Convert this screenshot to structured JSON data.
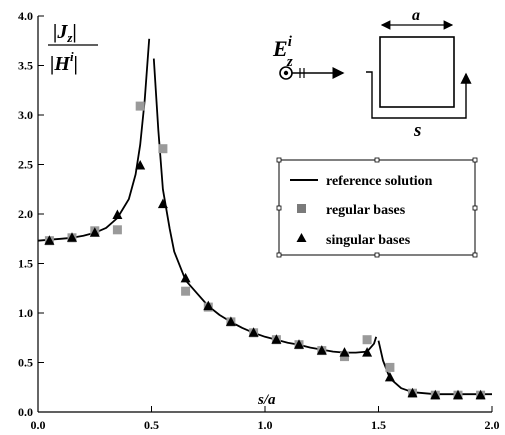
{
  "chart_data": {
    "type": "line",
    "xlabel": "s/a",
    "ylabel": {
      "num_prefix": "|J",
      "num_sub": "z",
      "num_suffix": "|",
      "den_prefix": "|H",
      "den_sup": "i",
      "den_suffix": "|"
    },
    "xlim": [
      0,
      2.0
    ],
    "ylim": [
      0,
      4.0
    ],
    "xticks": [
      "0.0",
      "0.5",
      "1.0",
      "1.5",
      "2.0"
    ],
    "yticks": [
      "0.0",
      "0.5",
      "1.0",
      "1.5",
      "2.0",
      "2.5",
      "3.0",
      "3.5",
      "4.0"
    ],
    "grid": false,
    "legend_position": "right",
    "series": [
      {
        "name": "reference solution",
        "kind": "line",
        "color": "#000000",
        "segments": [
          [
            [
              0.0,
              1.73
            ],
            [
              0.05,
              1.74
            ],
            [
              0.1,
              1.75
            ],
            [
              0.15,
              1.76
            ],
            [
              0.2,
              1.78
            ],
            [
              0.25,
              1.81
            ],
            [
              0.3,
              1.86
            ],
            [
              0.35,
              1.96
            ],
            [
              0.4,
              2.15
            ],
            [
              0.43,
              2.4
            ],
            [
              0.45,
              2.7
            ],
            [
              0.47,
              3.15
            ],
            [
              0.49,
              3.77
            ]
          ],
          [
            [
              0.51,
              3.57
            ],
            [
              0.53,
              2.85
            ],
            [
              0.55,
              2.25
            ],
            [
              0.58,
              1.85
            ],
            [
              0.6,
              1.62
            ],
            [
              0.65,
              1.33
            ],
            [
              0.7,
              1.2
            ],
            [
              0.75,
              1.07
            ],
            [
              0.8,
              0.98
            ],
            [
              0.85,
              0.91
            ],
            [
              0.9,
              0.85
            ],
            [
              0.95,
              0.8
            ],
            [
              1.0,
              0.76
            ],
            [
              1.05,
              0.73
            ],
            [
              1.1,
              0.7
            ],
            [
              1.15,
              0.68
            ],
            [
              1.2,
              0.65
            ],
            [
              1.25,
              0.63
            ],
            [
              1.3,
              0.61
            ],
            [
              1.35,
              0.6
            ],
            [
              1.4,
              0.6
            ],
            [
              1.45,
              0.61
            ],
            [
              1.48,
              0.69
            ],
            [
              1.49,
              0.76
            ]
          ],
          [
            [
              1.5,
              0.72
            ],
            [
              1.52,
              0.52
            ],
            [
              1.55,
              0.34
            ],
            [
              1.6,
              0.24
            ],
            [
              1.65,
              0.2
            ],
            [
              1.7,
              0.19
            ],
            [
              1.75,
              0.18
            ],
            [
              1.8,
              0.18
            ],
            [
              1.9,
              0.18
            ],
            [
              2.0,
              0.18
            ]
          ]
        ]
      },
      {
        "name": "regular bases",
        "kind": "square",
        "color": "#9a9a9a",
        "points": [
          [
            0.05,
            1.73
          ],
          [
            0.15,
            1.76
          ],
          [
            0.25,
            1.83
          ],
          [
            0.35,
            1.84
          ],
          [
            0.45,
            3.09
          ],
          [
            0.55,
            2.66
          ],
          [
            0.65,
            1.22
          ],
          [
            0.75,
            1.06
          ],
          [
            0.85,
            0.91
          ],
          [
            0.95,
            0.8
          ],
          [
            1.05,
            0.73
          ],
          [
            1.15,
            0.68
          ],
          [
            1.25,
            0.62
          ],
          [
            1.35,
            0.56
          ],
          [
            1.45,
            0.73
          ],
          [
            1.55,
            0.45
          ],
          [
            1.65,
            0.19
          ],
          [
            1.75,
            0.17
          ],
          [
            1.85,
            0.17
          ],
          [
            1.95,
            0.17
          ]
        ]
      },
      {
        "name": "singular bases",
        "kind": "triangle",
        "color": "#000000",
        "points": [
          [
            0.05,
            1.73
          ],
          [
            0.15,
            1.76
          ],
          [
            0.25,
            1.81
          ],
          [
            0.35,
            1.99
          ],
          [
            0.45,
            2.49
          ],
          [
            0.55,
            2.1
          ],
          [
            0.65,
            1.35
          ],
          [
            0.75,
            1.07
          ],
          [
            0.85,
            0.91
          ],
          [
            0.95,
            0.8
          ],
          [
            1.05,
            0.73
          ],
          [
            1.15,
            0.68
          ],
          [
            1.25,
            0.62
          ],
          [
            1.35,
            0.6
          ],
          [
            1.45,
            0.6
          ],
          [
            1.55,
            0.35
          ],
          [
            1.65,
            0.19
          ],
          [
            1.75,
            0.17
          ],
          [
            1.85,
            0.17
          ],
          [
            1.95,
            0.17
          ]
        ]
      }
    ],
    "inset": {
      "field_base": "E",
      "field_sub": "z",
      "field_sup": "i",
      "side_label": "a",
      "path_label": "s"
    }
  }
}
